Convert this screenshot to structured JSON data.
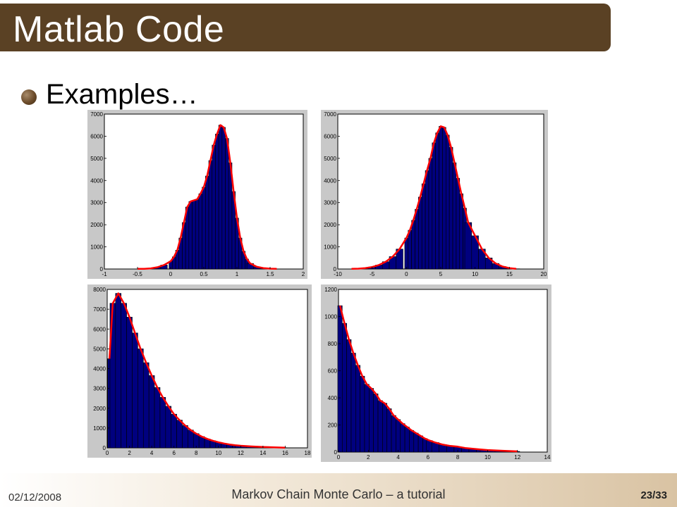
{
  "slide": {
    "title": "Matlab Code",
    "bullet": "Examples…",
    "footer_date": "02/12/2008",
    "footer_title": "Markov Chain Monte Carlo – a tutorial",
    "page": "23/33"
  },
  "colors": {
    "title_bar": "#5a4124",
    "bars": "#00007f",
    "fit_curve": "#ff0000",
    "plot_frame": "#c8c8c8"
  },
  "chart_data": [
    {
      "type": "bar",
      "xlim": [
        -1,
        2
      ],
      "ylim": [
        0,
        7000
      ],
      "xticks": [
        "-1",
        "-0.5",
        "0",
        "0.5",
        "1",
        "1.5",
        "2"
      ],
      "yticks": [
        "0",
        "1000",
        "2000",
        "3000",
        "4000",
        "5000",
        "6000",
        "7000"
      ],
      "x": [
        -0.5,
        -0.4,
        -0.3,
        -0.2,
        -0.1,
        0,
        0.05,
        0.1,
        0.15,
        0.2,
        0.25,
        0.3,
        0.35,
        0.4,
        0.45,
        0.5,
        0.55,
        0.6,
        0.65,
        0.7,
        0.75,
        0.8,
        0.85,
        0.9,
        0.95,
        1.0,
        1.05,
        1.1,
        1.15,
        1.2,
        1.3,
        1.4,
        1.5,
        1.6
      ],
      "values": [
        5,
        10,
        30,
        80,
        180,
        350,
        550,
        850,
        1400,
        2100,
        2800,
        3050,
        3100,
        3150,
        3400,
        3700,
        4200,
        4900,
        5600,
        6100,
        6500,
        6400,
        5900,
        4800,
        3500,
        2300,
        1400,
        800,
        450,
        250,
        100,
        40,
        15,
        5
      ],
      "fit_curve": true
    },
    {
      "type": "bar",
      "xlim": [
        -10,
        20
      ],
      "ylim": [
        0,
        7000
      ],
      "xticks": [
        "-10",
        "-5",
        "0",
        "5",
        "10",
        "15",
        "20"
      ],
      "yticks": [
        "0",
        "1000",
        "2000",
        "3000",
        "4000",
        "5000",
        "6000",
        "7000"
      ],
      "x": [
        -8,
        -7,
        -6,
        -5,
        -4,
        -3,
        -2,
        -1,
        0,
        0.5,
        1,
        1.5,
        2,
        2.5,
        3,
        3.5,
        4,
        4.5,
        5,
        5.5,
        6,
        6.5,
        7,
        7.5,
        8,
        8.5,
        9,
        10,
        11,
        12,
        13,
        14,
        15,
        16
      ],
      "values": [
        5,
        15,
        40,
        90,
        180,
        330,
        560,
        900,
        1400,
        1750,
        2200,
        2700,
        3250,
        3850,
        4450,
        5000,
        5700,
        6150,
        6450,
        6400,
        6050,
        5500,
        4800,
        4100,
        3400,
        2750,
        2100,
        1500,
        900,
        500,
        250,
        110,
        40,
        10
      ],
      "fit_curve": true
    },
    {
      "type": "bar",
      "xlim": [
        0,
        18
      ],
      "ylim": [
        0,
        8000
      ],
      "xticks": [
        "0",
        "2",
        "4",
        "6",
        "8",
        "10",
        "12",
        "14",
        "16",
        "18"
      ],
      "yticks": [
        "0",
        "1000",
        "2000",
        "3000",
        "4000",
        "5000",
        "6000",
        "7000",
        "8000"
      ],
      "x": [
        0.2,
        0.5,
        1,
        1.5,
        2,
        2.5,
        3,
        3.5,
        4,
        4.5,
        5,
        5.5,
        6,
        6.5,
        7,
        7.5,
        8,
        8.5,
        9,
        9.5,
        10,
        10.5,
        11,
        11.5,
        12,
        13,
        14,
        15,
        16
      ],
      "values": [
        4500,
        7300,
        7800,
        7300,
        6600,
        5800,
        5000,
        4300,
        3650,
        3050,
        2550,
        2100,
        1700,
        1400,
        1130,
        900,
        720,
        570,
        450,
        360,
        280,
        220,
        170,
        135,
        105,
        70,
        45,
        25,
        10
      ],
      "fit_curve": true
    },
    {
      "type": "bar",
      "xlim": [
        0,
        14
      ],
      "ylim": [
        0,
        1200
      ],
      "xticks": [
        "0",
        "2",
        "4",
        "6",
        "8",
        "10",
        "12",
        "14"
      ],
      "yticks": [
        "0",
        "200",
        "400",
        "600",
        "800",
        "1000",
        "1200"
      ],
      "x": [
        0.1,
        0.4,
        0.7,
        1,
        1.3,
        1.6,
        1.9,
        2.2,
        2.5,
        2.8,
        3.1,
        3.4,
        3.7,
        4,
        4.3,
        4.6,
        4.9,
        5.2,
        5.5,
        5.8,
        6.1,
        6.5,
        7,
        7.5,
        8,
        8.5,
        9,
        9.5,
        10,
        11,
        12
      ],
      "values": [
        1080,
        950,
        830,
        730,
        640,
        560,
        500,
        470,
        430,
        380,
        360,
        320,
        270,
        240,
        210,
        185,
        160,
        140,
        120,
        100,
        85,
        70,
        55,
        45,
        40,
        30,
        25,
        20,
        15,
        10,
        5
      ],
      "fit_curve": true
    }
  ]
}
